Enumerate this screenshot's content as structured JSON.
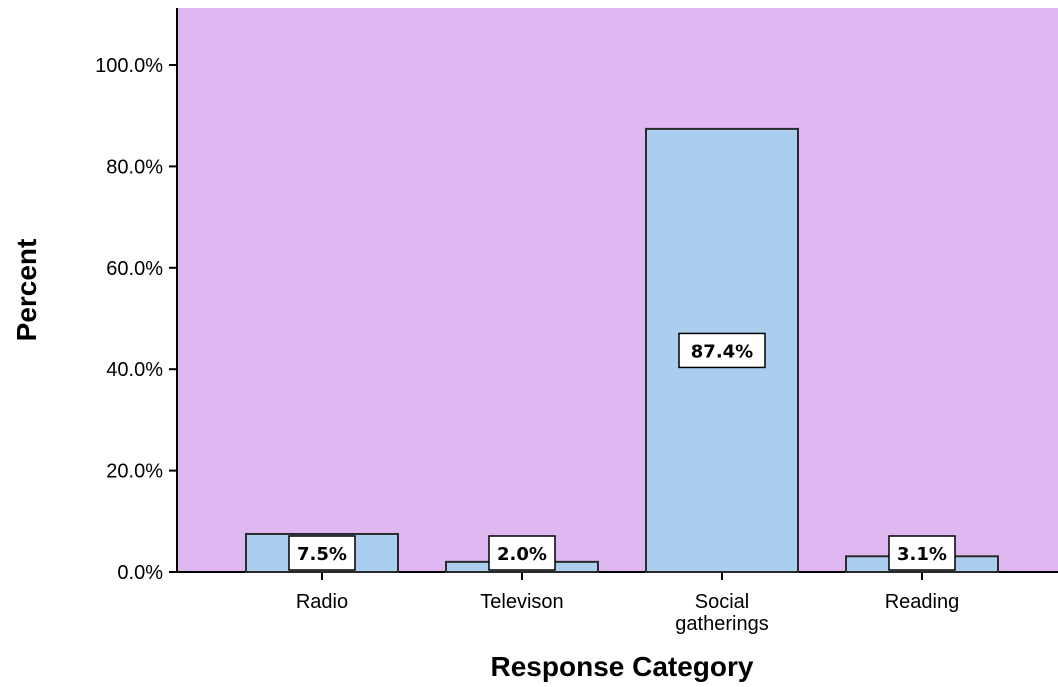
{
  "chart_data": {
    "type": "bar",
    "categories": [
      "Radio",
      "Televison",
      "Social gatherings",
      "Reading"
    ],
    "category_lines": [
      [
        "Radio"
      ],
      [
        "Televison"
      ],
      [
        "Social",
        "gatherings"
      ],
      [
        "Reading"
      ]
    ],
    "values": [
      7.5,
      2.0,
      87.4,
      3.1
    ],
    "data_labels": [
      "7.5%",
      "2.0%",
      "87.4%",
      "3.1%"
    ],
    "xlabel": "Response Category",
    "ylabel": "Percent",
    "ylim": [
      0,
      110
    ],
    "yticks": [
      0,
      20,
      40,
      60,
      80,
      100
    ],
    "ytick_labels": [
      "0.0%",
      "20.0%",
      "40.0%",
      "60.0%",
      "80.0%",
      "100.0%"
    ],
    "grid": false,
    "colors": {
      "plot_background": "#dfb8f2",
      "bar_fill": "#abcdee",
      "bar_stroke": "#2a2a2a",
      "label_box_fill": "#ffffff"
    }
  }
}
